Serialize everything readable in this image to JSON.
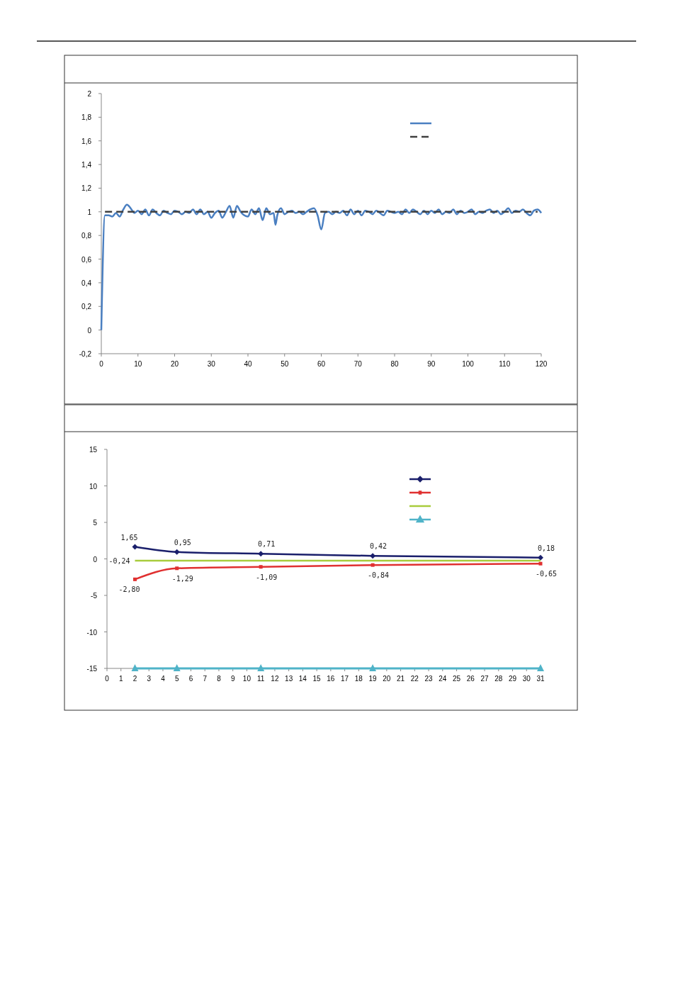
{
  "chart_data": [
    {
      "type": "line",
      "xlim": [
        0,
        120
      ],
      "xticks": [
        0,
        10,
        20,
        30,
        40,
        50,
        60,
        70,
        80,
        90,
        100,
        110,
        120
      ],
      "ylim": [
        -0.2,
        2
      ],
      "yticks": [
        {
          "value": -0.2,
          "label": "-0,2"
        },
        0,
        {
          "value": 0.2,
          "label": "0,2"
        },
        {
          "value": 0.4,
          "label": "0,4"
        },
        {
          "value": 0.6,
          "label": "0,6"
        },
        {
          "value": 0.8,
          "label": "0,8"
        },
        1,
        {
          "value": 1.2,
          "label": "1,2"
        },
        {
          "value": 1.4,
          "label": "1,4"
        },
        {
          "value": 1.6,
          "label": "1,6"
        },
        {
          "value": 1.8,
          "label": "1,8"
        },
        2
      ],
      "grid": false,
      "series": [
        {
          "color": "#4a7fc1",
          "line_style": "solid",
          "x": [
            0,
            1,
            2,
            3,
            4,
            5,
            6,
            7,
            8,
            9,
            10,
            11,
            12,
            13,
            14,
            15,
            16,
            17,
            18,
            19,
            20,
            21,
            22,
            23,
            24,
            25,
            26,
            27,
            28,
            29,
            30,
            31,
            32,
            33,
            34,
            35,
            36,
            37,
            38,
            39,
            40,
            41,
            42,
            43,
            44,
            45,
            46,
            47,
            47.5,
            48,
            49,
            50,
            51,
            52,
            53,
            54,
            55,
            56,
            57,
            58,
            59,
            60,
            61,
            62,
            63,
            64,
            65,
            66,
            67,
            68,
            69,
            70,
            71,
            72,
            73,
            74,
            75,
            76,
            77,
            78,
            79,
            80,
            81,
            82,
            83,
            84,
            85,
            86,
            87,
            88,
            89,
            90,
            91,
            92,
            93,
            94,
            95,
            96,
            97,
            98,
            99,
            100,
            101,
            102,
            103,
            104,
            105,
            106,
            107,
            108,
            109,
            110,
            111,
            112,
            113,
            114,
            115,
            116,
            117,
            118,
            119,
            120
          ],
          "values": [
            0,
            0.97,
            0.97,
            0.96,
            0.99,
            0.96,
            1.02,
            1.06,
            1.03,
            0.99,
            1.01,
            0.98,
            1.02,
            0.97,
            1.02,
            0.99,
            0.97,
            1.01,
            0.99,
            0.98,
            1.01,
            1.0,
            0.98,
            1.0,
            0.99,
            1.02,
            0.98,
            1.02,
            0.98,
            1.0,
            0.95,
            0.99,
            1.01,
            0.95,
            1.0,
            1.05,
            0.95,
            1.05,
            1.0,
            0.97,
            0.96,
            1.02,
            0.98,
            1.03,
            0.93,
            1.03,
            0.98,
            0.99,
            0.89,
            0.97,
            1.03,
            0.98,
            1.0,
            1.01,
            0.99,
            1.0,
            0.98,
            1.0,
            1.02,
            1.03,
            0.97,
            0.85,
            0.99,
            1.0,
            0.98,
            1.0,
            0.99,
            1.01,
            0.97,
            1.02,
            0.98,
            1.01,
            0.97,
            1.01,
            1.0,
            0.98,
            1.01,
            0.99,
            0.97,
            1.01,
            1.0,
            0.99,
            1.0,
            0.98,
            1.02,
            0.99,
            1.02,
            1.0,
            0.98,
            1.01,
            0.98,
            1.01,
            0.99,
            1.02,
            0.98,
            1.0,
            0.99,
            1.02,
            0.98,
            1.01,
            0.99,
            1.0,
            1.02,
            0.98,
            1.0,
            0.99,
            1.01,
            1.02,
            0.99,
            1.01,
            0.98,
            1.0,
            1.03,
            0.99,
            1.01,
            1.0,
            1.02,
            0.99,
            0.97,
            1.01,
            1.02,
            0.99
          ]
        },
        {
          "color": "#404040",
          "line_style": "dashed",
          "x": [
            1,
            119
          ],
          "values": [
            1,
            1
          ]
        }
      ]
    },
    {
      "type": "line",
      "xlim": [
        0,
        31
      ],
      "xticks": [
        0,
        1,
        2,
        3,
        4,
        5,
        6,
        7,
        8,
        9,
        10,
        11,
        12,
        13,
        14,
        15,
        16,
        17,
        18,
        19,
        20,
        21,
        22,
        23,
        24,
        25,
        26,
        27,
        28,
        29,
        30,
        31
      ],
      "ylim": [
        -15,
        15
      ],
      "yticks": [
        -15,
        -10,
        -5,
        0,
        5,
        10,
        15
      ],
      "grid": false,
      "series": [
        {
          "color": "#1a1f6b",
          "marker": "diamond",
          "x": [
            2,
            5,
            11,
            19,
            31
          ],
          "values": [
            1.65,
            0.95,
            0.71,
            0.42,
            0.18
          ],
          "value_labels": [
            "1,65",
            "0,95",
            "0,71",
            "0,42",
            "0,18"
          ]
        },
        {
          "color": "#e03030",
          "marker": "square",
          "x": [
            2,
            5,
            11,
            19,
            31
          ],
          "values": [
            -2.8,
            -1.29,
            -1.09,
            -0.84,
            -0.65
          ],
          "value_labels": [
            "-2,80",
            "-1,29",
            "-1,09",
            "-0,84",
            "-0,65"
          ]
        },
        {
          "color": "#a8cc3c",
          "marker": "none",
          "x": [
            2,
            31
          ],
          "values": [
            -0.24,
            -0.24
          ],
          "value_labels": [
            "-0,24",
            null
          ]
        },
        {
          "color": "#4fb3c8",
          "marker": "triangle",
          "x": [
            2,
            5,
            11,
            19,
            31
          ],
          "values": [
            -15,
            -15,
            -15,
            -15,
            -15
          ]
        }
      ]
    }
  ]
}
